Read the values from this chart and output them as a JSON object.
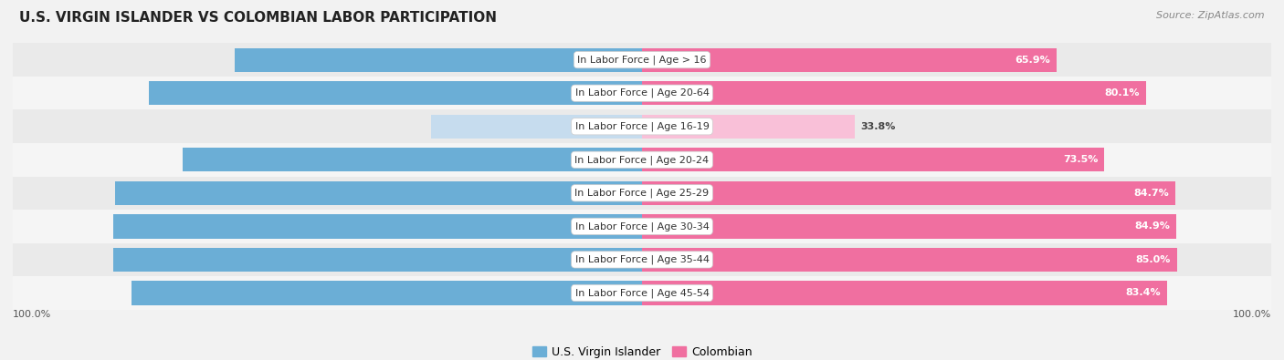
{
  "title": "U.S. VIRGIN ISLANDER VS COLOMBIAN LABOR PARTICIPATION",
  "source": "Source: ZipAtlas.com",
  "categories": [
    "In Labor Force | Age > 16",
    "In Labor Force | Age 20-64",
    "In Labor Force | Age 16-19",
    "In Labor Force | Age 20-24",
    "In Labor Force | Age 25-29",
    "In Labor Force | Age 30-34",
    "In Labor Force | Age 35-44",
    "In Labor Force | Age 45-54"
  ],
  "left_values": [
    64.7,
    78.4,
    33.6,
    73.0,
    83.8,
    84.1,
    84.0,
    81.2
  ],
  "right_values": [
    65.9,
    80.1,
    33.8,
    73.5,
    84.7,
    84.9,
    85.0,
    83.4
  ],
  "left_color": "#6BAED6",
  "right_color": "#F06FA0",
  "left_light_color": "#C6DCEE",
  "right_light_color": "#F9C0D8",
  "bar_height": 0.72,
  "bg_color": "#F2F2F2",
  "row_bg_even": "#EAEAEA",
  "row_bg_odd": "#F5F5F5",
  "max_value": 100.0,
  "legend_left": "U.S. Virgin Islander",
  "legend_right": "Colombian",
  "title_fontsize": 11,
  "label_fontsize": 8,
  "value_fontsize": 8,
  "source_fontsize": 8
}
